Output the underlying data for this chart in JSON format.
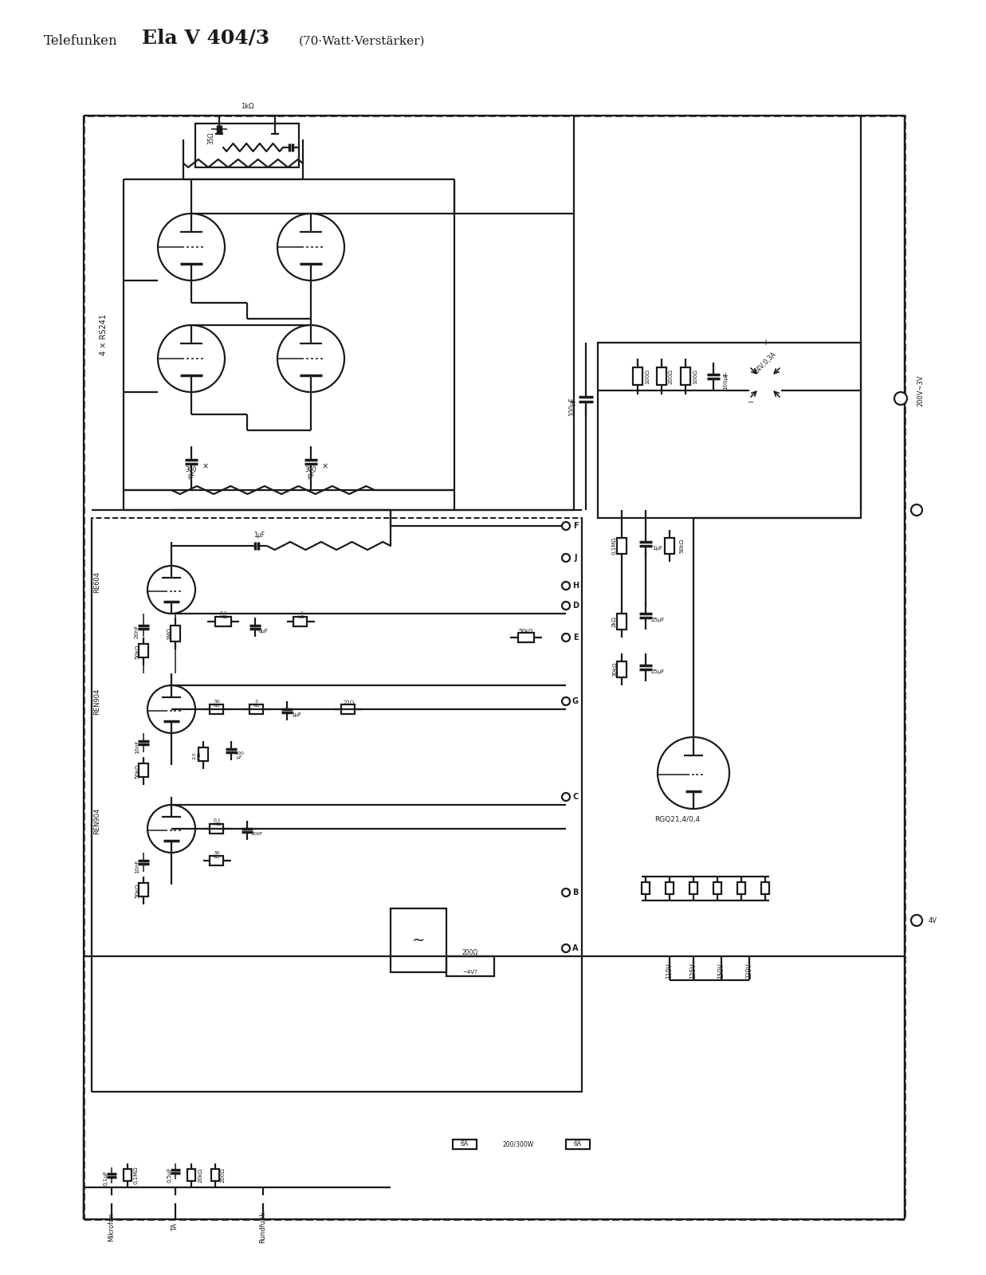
{
  "title_normal": "Telefunken ",
  "title_bold": "Ela V 404/3",
  "title_sub": " (70·Watt·Verstärker)",
  "bg_color": "#ffffff",
  "ink_color": "#1a1a1a",
  "fig_width": 12.37,
  "fig_height": 16.0,
  "dpi": 100
}
